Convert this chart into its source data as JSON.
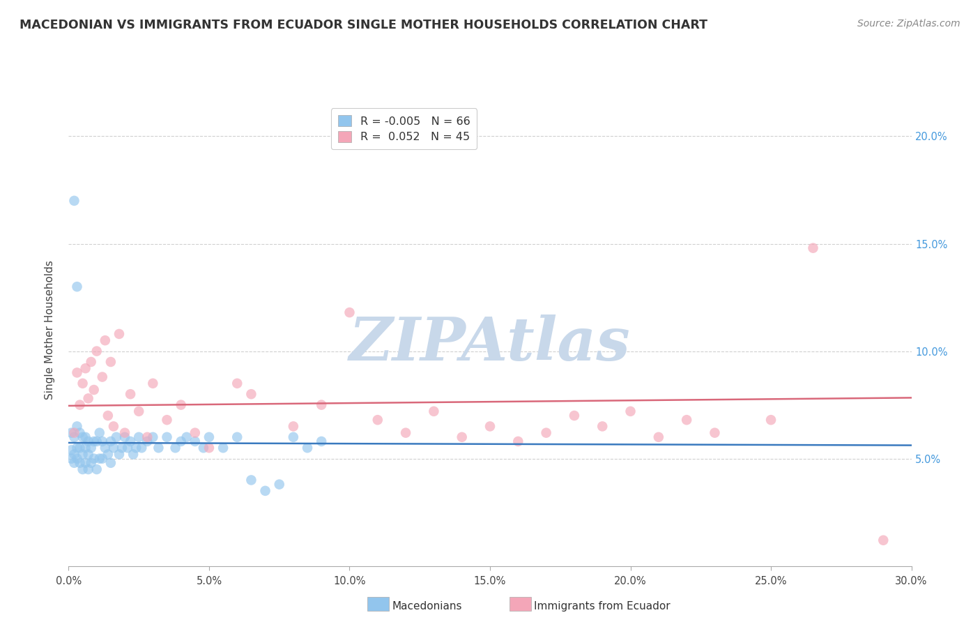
{
  "title": "MACEDONIAN VS IMMIGRANTS FROM ECUADOR SINGLE MOTHER HOUSEHOLDS CORRELATION CHART",
  "source": "Source: ZipAtlas.com",
  "ylabel": "Single Mother Households",
  "xlim": [
    0.0,
    0.3
  ],
  "ylim": [
    0.0,
    0.22
  ],
  "yticks": [
    0.05,
    0.1,
    0.15,
    0.2
  ],
  "ytick_labels": [
    "5.0%",
    "10.0%",
    "15.0%",
    "20.0%"
  ],
  "xticks": [
    0.0,
    0.05,
    0.1,
    0.15,
    0.2,
    0.25,
    0.3
  ],
  "xtick_labels": [
    "0.0%",
    "5.0%",
    "10.0%",
    "15.0%",
    "20.0%",
    "25.0%",
    "30.0%"
  ],
  "macedonian_color": "#92c5ed",
  "ecuador_color": "#f4a6b8",
  "macedonian_line_color": "#3a7abf",
  "ecuador_line_color": "#d9687a",
  "macedonian_R": -0.005,
  "macedonian_N": 66,
  "ecuador_R": 0.052,
  "ecuador_N": 45,
  "watermark": "ZIPAtlas",
  "watermark_color": "#c8d8ea",
  "background_color": "#ffffff",
  "grid_color": "#d0d0d0",
  "macedonian_scatter_x": [
    0.001,
    0.001,
    0.001,
    0.002,
    0.002,
    0.002,
    0.002,
    0.003,
    0.003,
    0.003,
    0.003,
    0.004,
    0.004,
    0.004,
    0.005,
    0.005,
    0.005,
    0.006,
    0.006,
    0.006,
    0.007,
    0.007,
    0.007,
    0.008,
    0.008,
    0.009,
    0.009,
    0.01,
    0.01,
    0.011,
    0.011,
    0.012,
    0.012,
    0.013,
    0.014,
    0.015,
    0.015,
    0.016,
    0.017,
    0.018,
    0.019,
    0.02,
    0.021,
    0.022,
    0.023,
    0.024,
    0.025,
    0.026,
    0.028,
    0.03,
    0.032,
    0.035,
    0.038,
    0.04,
    0.042,
    0.045,
    0.048,
    0.05,
    0.055,
    0.06,
    0.065,
    0.07,
    0.075,
    0.08,
    0.085,
    0.09
  ],
  "macedonian_scatter_y": [
    0.05,
    0.054,
    0.062,
    0.048,
    0.052,
    0.06,
    0.17,
    0.05,
    0.055,
    0.065,
    0.13,
    0.048,
    0.055,
    0.062,
    0.045,
    0.052,
    0.06,
    0.048,
    0.055,
    0.06,
    0.045,
    0.052,
    0.058,
    0.048,
    0.055,
    0.05,
    0.058,
    0.045,
    0.058,
    0.05,
    0.062,
    0.05,
    0.058,
    0.055,
    0.052,
    0.048,
    0.058,
    0.055,
    0.06,
    0.052,
    0.055,
    0.06,
    0.055,
    0.058,
    0.052,
    0.055,
    0.06,
    0.055,
    0.058,
    0.06,
    0.055,
    0.06,
    0.055,
    0.058,
    0.06,
    0.058,
    0.055,
    0.06,
    0.055,
    0.06,
    0.04,
    0.035,
    0.038,
    0.06,
    0.055,
    0.058
  ],
  "ecuador_scatter_x": [
    0.002,
    0.003,
    0.004,
    0.005,
    0.006,
    0.007,
    0.008,
    0.009,
    0.01,
    0.012,
    0.013,
    0.014,
    0.015,
    0.016,
    0.018,
    0.02,
    0.022,
    0.025,
    0.028,
    0.03,
    0.035,
    0.04,
    0.045,
    0.05,
    0.06,
    0.065,
    0.08,
    0.09,
    0.1,
    0.11,
    0.12,
    0.13,
    0.14,
    0.15,
    0.16,
    0.17,
    0.18,
    0.19,
    0.2,
    0.21,
    0.22,
    0.23,
    0.25,
    0.265,
    0.29
  ],
  "ecuador_scatter_y": [
    0.062,
    0.09,
    0.075,
    0.085,
    0.092,
    0.078,
    0.095,
    0.082,
    0.1,
    0.088,
    0.105,
    0.07,
    0.095,
    0.065,
    0.108,
    0.062,
    0.08,
    0.072,
    0.06,
    0.085,
    0.068,
    0.075,
    0.062,
    0.055,
    0.085,
    0.08,
    0.065,
    0.075,
    0.118,
    0.068,
    0.062,
    0.072,
    0.06,
    0.065,
    0.058,
    0.062,
    0.07,
    0.065,
    0.072,
    0.06,
    0.068,
    0.062,
    0.068,
    0.148,
    0.012
  ]
}
